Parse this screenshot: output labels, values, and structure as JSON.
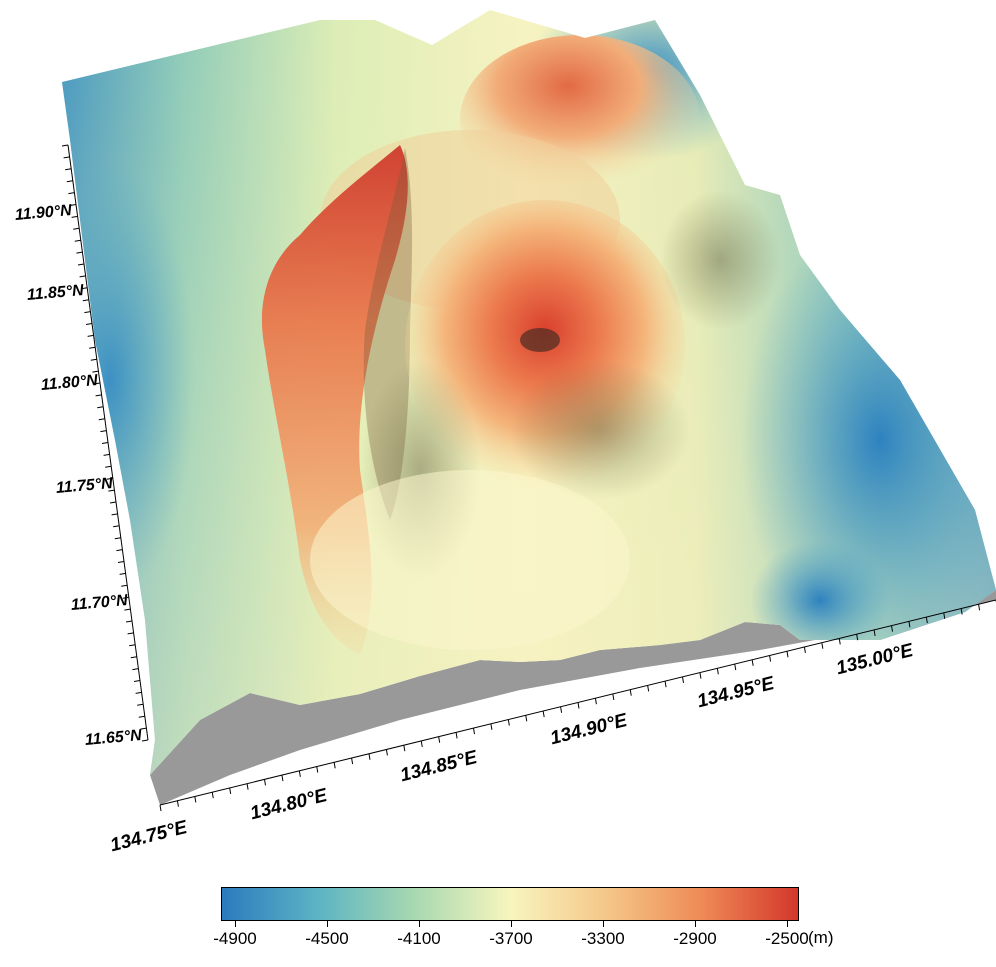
{
  "map": {
    "latitude_labels": [
      "11.65°N",
      "11.70°N",
      "11.75°N",
      "11.80°N",
      "11.85°N",
      "11.90°N"
    ],
    "longitude_labels": [
      "134.75°E",
      "134.80°E",
      "134.85°E",
      "134.90°E",
      "134.95°E",
      "135.00°E"
    ],
    "surface_colors": [
      "#2b7bbd",
      "#5cb4c4",
      "#a8d8b0",
      "#f7f5be",
      "#f5c789",
      "#ee8a55",
      "#d4372c"
    ],
    "side_wall_color": "#999999"
  },
  "colorbar": {
    "ticks": [
      "-4900",
      "-4500",
      "-4100",
      "-3700",
      "-3300",
      "-2900",
      "-2500"
    ],
    "unit": "(m)"
  }
}
